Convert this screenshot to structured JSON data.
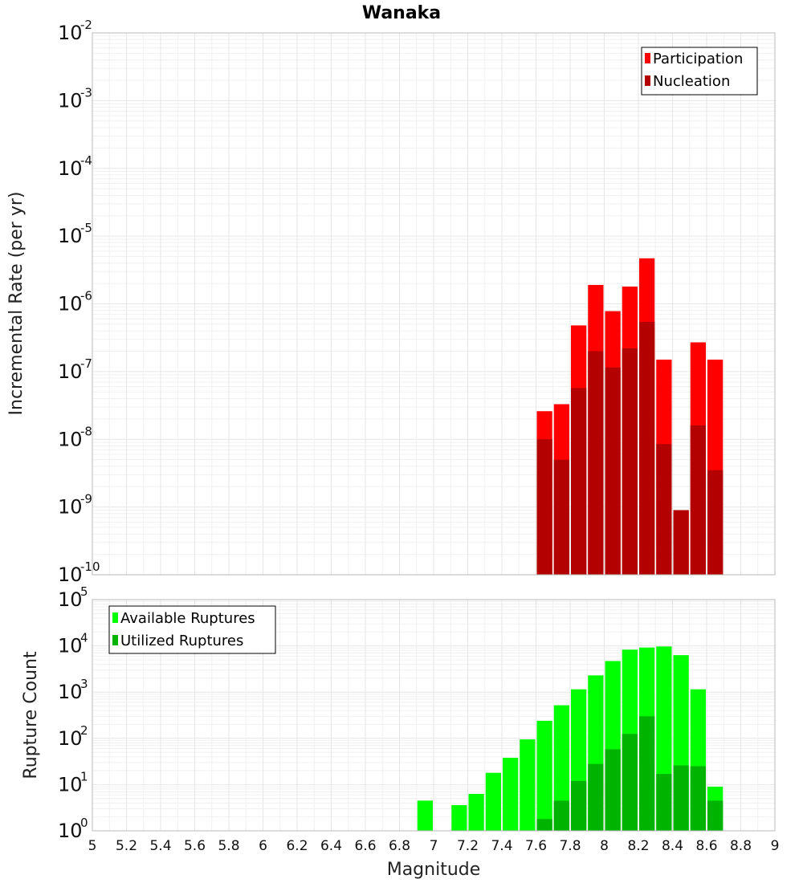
{
  "title": "Wanaka",
  "chart_data": [
    {
      "type": "bar",
      "yscale": "log",
      "ylabel": "Incremental Rate (per yr)",
      "xlabel": "",
      "xlim": [
        5,
        9
      ],
      "ylim_exp": [
        -10,
        -2
      ],
      "ytick_base": "10",
      "bar_width": 0.1,
      "x": [
        7.65,
        7.75,
        7.85,
        7.95,
        8.05,
        8.15,
        8.25,
        8.35,
        8.45,
        8.55,
        8.65
      ],
      "series": [
        {
          "name": "Participation",
          "color": "#ff0000",
          "values": [
            2.6e-08,
            3.3e-08,
            4.8e-07,
            1.9e-06,
            7.8e-07,
            1.8e-06,
            4.7e-06,
            1.5e-07,
            9e-10,
            2.7e-07,
            1.5e-07
          ]
        },
        {
          "name": "Nucleation",
          "color": "#b30000",
          "values": [
            1e-08,
            5e-09,
            5.7e-08,
            2e-07,
            1.15e-07,
            2.2e-07,
            5.4e-07,
            8.5e-09,
            9e-10,
            1.6e-08,
            3.5e-09
          ]
        }
      ],
      "legend": {
        "position": "top-right"
      }
    },
    {
      "type": "bar",
      "yscale": "log",
      "ylabel": "Rupture Count",
      "xlabel": "Magnitude",
      "xlim": [
        5,
        9
      ],
      "ylim_exp": [
        0,
        5
      ],
      "ytick_base": "10",
      "bar_width": 0.1,
      "x": [
        6.95,
        7.05,
        7.15,
        7.25,
        7.35,
        7.45,
        7.55,
        7.65,
        7.75,
        7.85,
        7.95,
        8.05,
        8.15,
        8.25,
        8.35,
        8.45,
        8.55,
        8.65
      ],
      "series": [
        {
          "name": "Available Ruptures",
          "color": "#00ff00",
          "values": [
            4.5,
            0,
            3.6,
            6.3,
            18,
            38,
            95,
            240,
            520,
            1150,
            2300,
            4700,
            8300,
            9200,
            9700,
            6300,
            1150,
            9
          ]
        },
        {
          "name": "Utilized Ruptures",
          "color": "#00b300",
          "values": [
            0,
            0,
            0,
            0,
            0,
            0,
            0,
            1.8,
            4.5,
            12,
            28,
            58,
            125,
            300,
            17,
            26,
            25,
            4.5
          ]
        }
      ],
      "xticks": [
        "5",
        "5.2",
        "5.4",
        "5.6",
        "5.8",
        "6",
        "6.2",
        "6.4",
        "6.6",
        "6.8",
        "7",
        "7.2",
        "7.4",
        "7.6",
        "7.8",
        "8",
        "8.2",
        "8.4",
        "8.6",
        "8.8",
        "9"
      ],
      "legend": {
        "position": "top-left"
      }
    }
  ]
}
